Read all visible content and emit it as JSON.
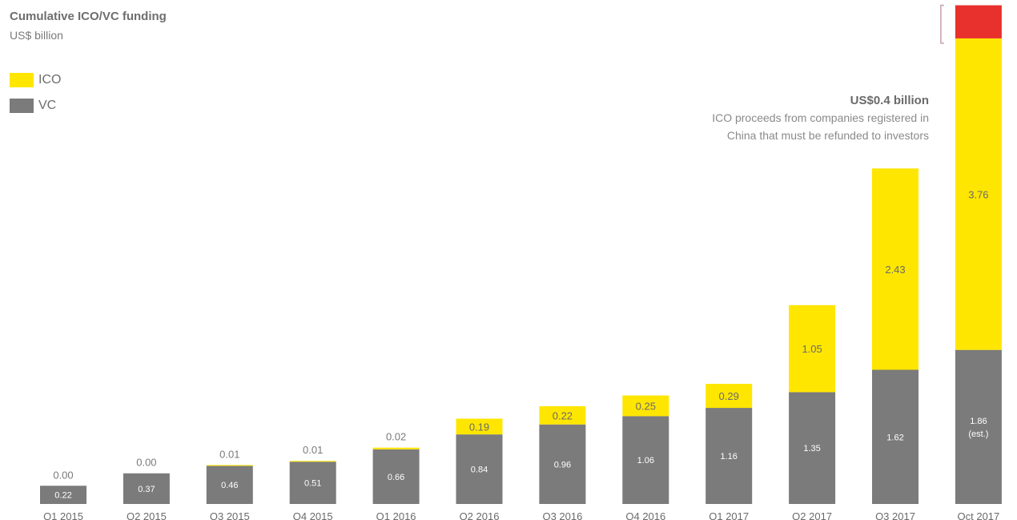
{
  "chart_data": {
    "type": "bar",
    "stacked": true,
    "title": "Cumulative ICO/VC funding",
    "subtitle": "US$ billion",
    "legend": {
      "position": "top-left"
    },
    "grid": false,
    "ylim": [
      0,
      5.6
    ],
    "categories": [
      "Q1 2015",
      "Q2 2015",
      "Q3 2015",
      "Q4 2015",
      "Q1 2016",
      "Q2 2016",
      "Q3 2016",
      "Q4 2016",
      "Q1 2017",
      "Q2 2017",
      "Q3 2017",
      "Oct 2017"
    ],
    "series": [
      {
        "name": "VC",
        "color": "#7b7b7b",
        "values": [
          0.22,
          0.37,
          0.46,
          0.51,
          0.66,
          0.84,
          0.96,
          1.06,
          1.16,
          1.35,
          1.62,
          1.86
        ],
        "labels": [
          "0.22",
          "0.37",
          "0.46",
          "0.51",
          "0.66",
          "0.84",
          "0.96",
          "1.06",
          "1.16",
          "1.35",
          "1.62",
          "1.86"
        ]
      },
      {
        "name": "ICO",
        "color": "#ffe600",
        "values": [
          0.0,
          0.0,
          0.01,
          0.01,
          0.02,
          0.19,
          0.22,
          0.25,
          0.29,
          1.05,
          2.43,
          3.76
        ],
        "labels": [
          "0.00",
          "0.00",
          "0.01",
          "0.01",
          "0.02",
          "0.19",
          "0.22",
          "0.25",
          "0.29",
          "1.05",
          "2.43",
          "3.76"
        ]
      }
    ],
    "extra_segment": {
      "category": "Oct 2017",
      "value": 0.4,
      "color": "#e8312c"
    },
    "last_vc_label_suffix": "(est.)",
    "annotation": {
      "title": "US$0.4 billion",
      "lines": [
        "ICO proceeds from companies registered in",
        "China that must be refunded to investors"
      ]
    }
  }
}
